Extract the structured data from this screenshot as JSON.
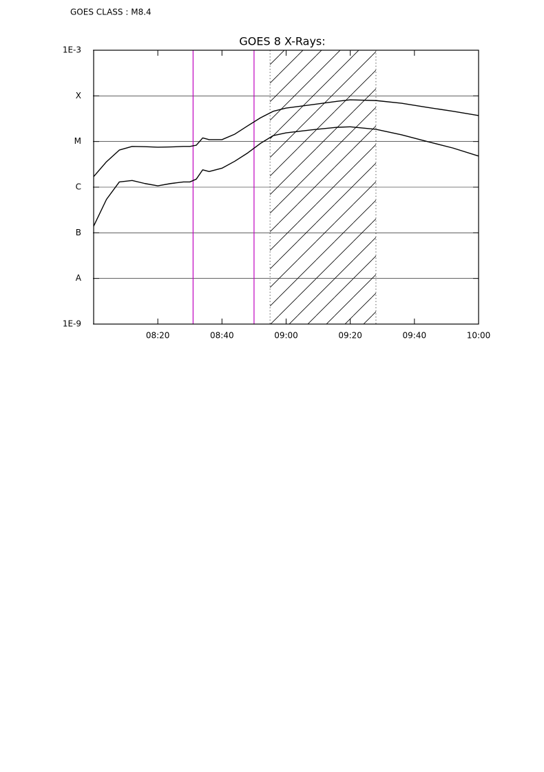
{
  "chart_data": {
    "type": "line",
    "header": "GOES CLASS : M8.4",
    "title": "GOES 8 X-Rays:",
    "x": [
      "08:00",
      "08:04",
      "08:08",
      "08:12",
      "08:16",
      "08:20",
      "08:24",
      "08:28",
      "08:30",
      "08:32",
      "08:34",
      "08:36",
      "08:40",
      "08:44",
      "08:48",
      "08:52",
      "08:56",
      "09:00",
      "09:08",
      "09:16",
      "09:20",
      "09:28",
      "09:36",
      "09:44",
      "09:52",
      "10:00"
    ],
    "series": [
      {
        "color": "#000000",
        "values": [
          1.7e-06,
          3.6e-06,
          6.5e-06,
          7.8e-06,
          7.7e-06,
          7.5e-06,
          7.6e-06,
          7.8e-06,
          7.8e-06,
          8.3e-06,
          1.2e-05,
          1.1e-05,
          1.1e-05,
          1.45e-05,
          2.2e-05,
          3.3e-05,
          4.6e-05,
          5.4e-05,
          6.4e-05,
          7.6e-05,
          8.2e-05,
          7.9e-05,
          6.9e-05,
          5.6e-05,
          4.6e-05,
          3.7e-05
        ]
      },
      {
        "color": "#000000",
        "values": [
          1.4e-07,
          5.4e-07,
          1.3e-06,
          1.4e-06,
          1.2e-06,
          1.07e-06,
          1.2e-06,
          1.3e-06,
          1.3e-06,
          1.5e-06,
          2.4e-06,
          2.2e-06,
          2.6e-06,
          3.7e-06,
          5.6e-06,
          9.1e-06,
          1.35e-05,
          1.55e-05,
          1.8e-05,
          2.05e-05,
          2.1e-05,
          1.85e-05,
          1.4e-05,
          1e-05,
          7.2e-06,
          4.8e-06
        ]
      }
    ],
    "xlim": [
      "08:00",
      "10:00"
    ],
    "xticks": [
      "08:20",
      "08:40",
      "09:00",
      "09:20",
      "09:40",
      "10:00"
    ],
    "ylim": [
      1e-09,
      0.001
    ],
    "ylog": true,
    "yticks": [
      {
        "value": 1e-09,
        "label": "1E-9"
      },
      {
        "value": 1e-08,
        "label": "A"
      },
      {
        "value": 1e-07,
        "label": "B"
      },
      {
        "value": 1e-06,
        "label": "C"
      },
      {
        "value": 1e-05,
        "label": "M"
      },
      {
        "value": 0.0001,
        "label": "X"
      },
      {
        "value": 0.001,
        "label": "1E-3"
      }
    ],
    "grid": true,
    "vlines": [
      "08:31",
      "08:50"
    ],
    "vline_color": "#c000c0",
    "shaded": [
      "08:55",
      "09:28"
    ]
  }
}
